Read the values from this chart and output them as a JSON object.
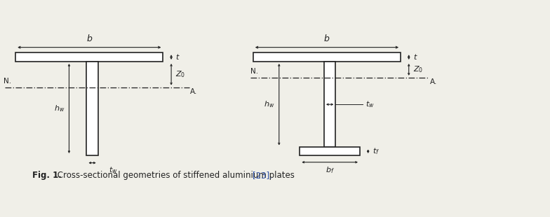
{
  "fig_caption_bold": "Fig. 1.",
  "fig_caption_normal": " Cross-sectional geometries of stiffened aluminium plates ",
  "fig_caption_ref": "[23].",
  "background_color": "#f0efe8",
  "line_color": "#222222",
  "figsize": [
    7.84,
    3.1
  ]
}
